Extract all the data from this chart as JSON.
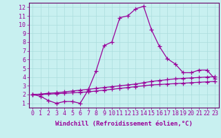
{
  "line1_x": [
    0,
    1,
    2,
    3,
    4,
    5,
    6,
    7,
    8,
    9,
    10,
    11,
    12,
    13,
    14,
    15,
    16,
    17,
    18,
    19,
    20,
    21,
    22,
    23
  ],
  "line1_y": [
    2.0,
    1.8,
    1.3,
    1.0,
    1.2,
    1.2,
    1.0,
    2.5,
    4.7,
    7.6,
    8.0,
    10.8,
    11.0,
    11.8,
    12.1,
    9.4,
    7.5,
    6.1,
    5.5,
    4.5,
    4.5,
    4.8,
    4.8,
    3.8
  ],
  "line2_x": [
    0,
    1,
    2,
    3,
    4,
    5,
    6,
    7,
    8,
    9,
    10,
    11,
    12,
    13,
    14,
    15,
    16,
    17,
    18,
    19,
    20,
    21,
    22,
    23
  ],
  "line2_y": [
    2.0,
    2.05,
    2.15,
    2.2,
    2.3,
    2.4,
    2.5,
    2.6,
    2.7,
    2.8,
    2.9,
    3.0,
    3.1,
    3.2,
    3.35,
    3.5,
    3.6,
    3.7,
    3.8,
    3.85,
    3.9,
    3.95,
    4.0,
    4.05
  ],
  "line3_x": [
    0,
    1,
    2,
    3,
    4,
    5,
    6,
    7,
    8,
    9,
    10,
    11,
    12,
    13,
    14,
    15,
    16,
    17,
    18,
    19,
    20,
    21,
    22,
    23
  ],
  "line3_y": [
    2.0,
    2.02,
    2.05,
    2.1,
    2.15,
    2.2,
    2.25,
    2.3,
    2.4,
    2.5,
    2.6,
    2.7,
    2.8,
    2.9,
    3.0,
    3.1,
    3.15,
    3.2,
    3.25,
    3.3,
    3.35,
    3.4,
    3.45,
    3.5
  ],
  "color": "#990099",
  "bg_color": "#c8f0f0",
  "grid_color": "#aadddd",
  "xlabel": "Windchill (Refroidissement éolien,°C)",
  "xlim": [
    -0.5,
    23.5
  ],
  "ylim": [
    0.5,
    12.5
  ],
  "xticks": [
    0,
    1,
    2,
    3,
    4,
    5,
    6,
    7,
    8,
    9,
    10,
    11,
    12,
    13,
    14,
    15,
    16,
    17,
    18,
    19,
    20,
    21,
    22,
    23
  ],
  "yticks": [
    1,
    2,
    3,
    4,
    5,
    6,
    7,
    8,
    9,
    10,
    11,
    12
  ],
  "marker": "+",
  "markersize": 4,
  "linewidth": 0.9,
  "xlabel_fontsize": 6.5,
  "tick_fontsize": 6,
  "axis_color": "#990099",
  "tick_color": "#990099",
  "spine_color": "#660066"
}
